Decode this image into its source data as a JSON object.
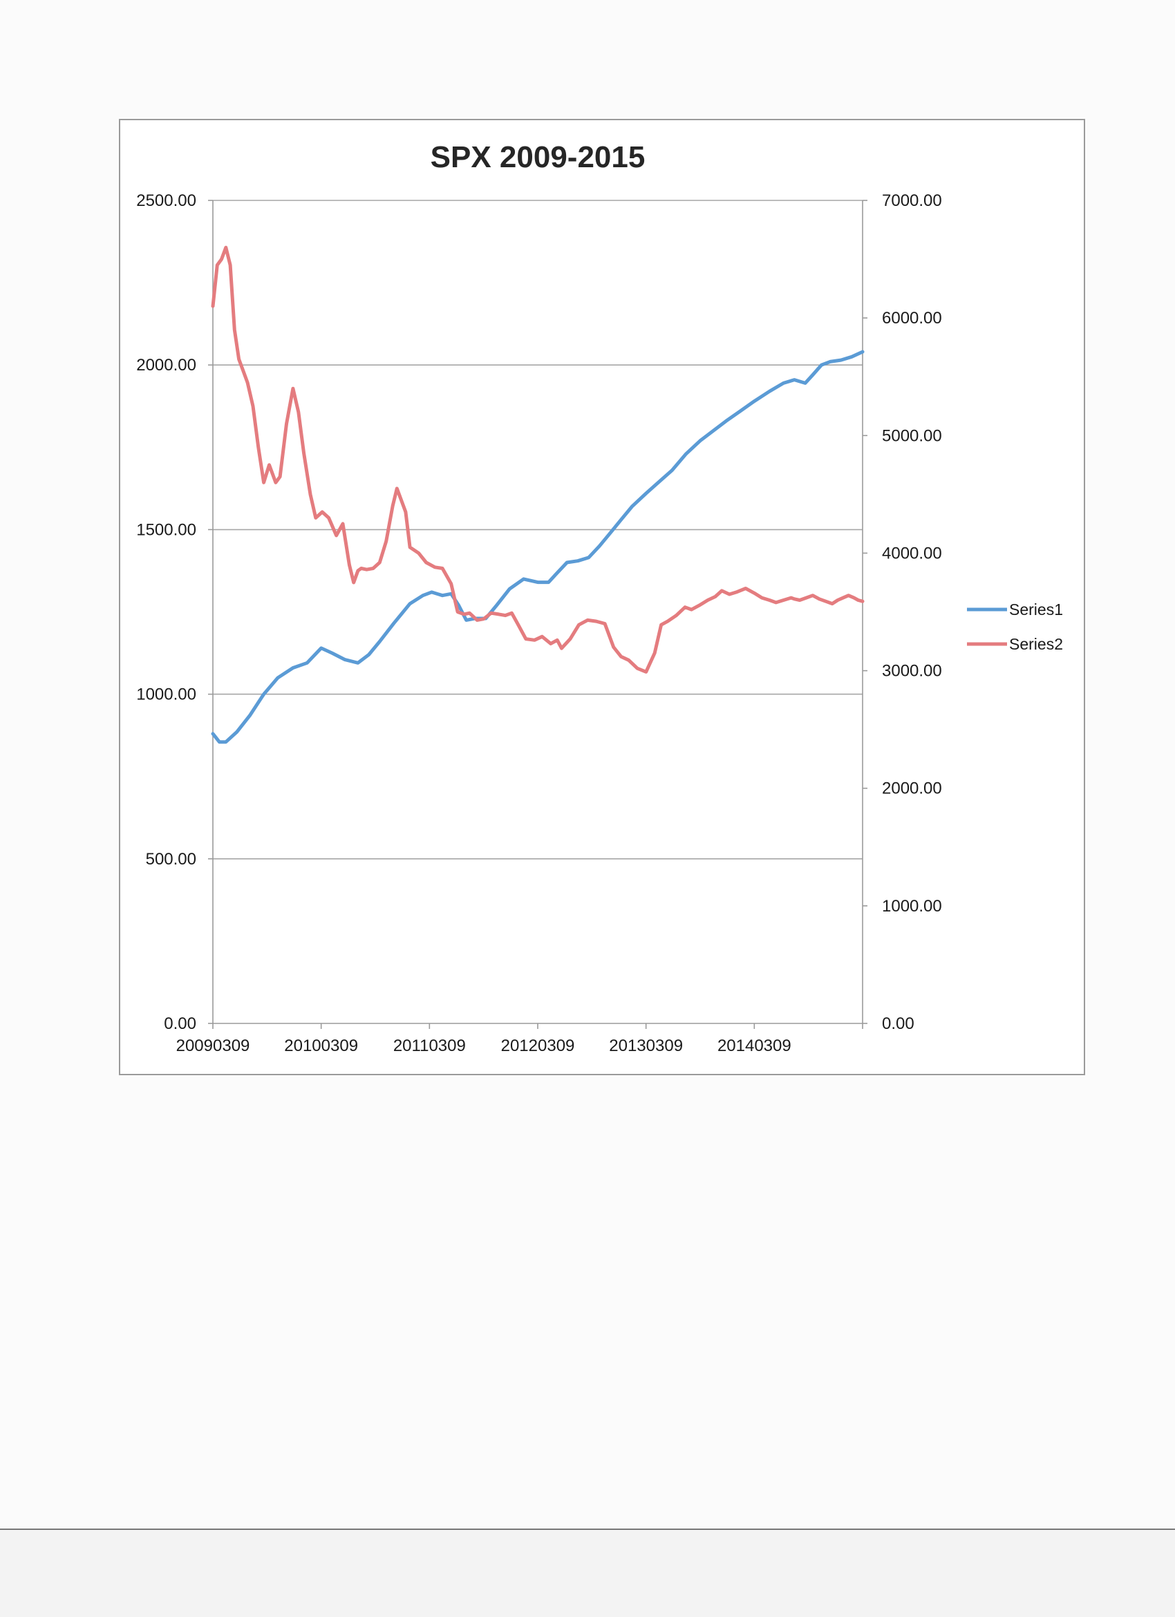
{
  "chart_data": {
    "type": "line",
    "title": "SPX 2009-2015",
    "xlabel": "",
    "ylabel": "",
    "x_tick_labels": [
      "20090309",
      "20100309",
      "20110309",
      "20120309",
      "20130309",
      "20140309"
    ],
    "x_range": [
      2009.18,
      2015.18
    ],
    "y_left": {
      "range": [
        0,
        2500
      ],
      "ticks": [
        "0.00",
        "500.00",
        "1000.00",
        "1500.00",
        "2000.00",
        "2500.00"
      ]
    },
    "y_right": {
      "range": [
        0,
        7000
      ],
      "ticks": [
        "0.00",
        "1000.00",
        "2000.00",
        "3000.00",
        "4000.00",
        "5000.00",
        "6000.00",
        "7000.00"
      ]
    },
    "gridlines": "horizontal",
    "legend_position": "right",
    "series": [
      {
        "name": "Series1",
        "axis": "left",
        "color": "#5b9bd5",
        "x": [
          2009.18,
          2009.24,
          2009.3,
          2009.4,
          2009.52,
          2009.65,
          2009.78,
          2009.92,
          2010.05,
          2010.18,
          2010.28,
          2010.4,
          2010.52,
          2010.62,
          2010.72,
          2010.85,
          2011.0,
          2011.12,
          2011.2,
          2011.3,
          2011.38,
          2011.45,
          2011.52,
          2011.6,
          2011.7,
          2011.8,
          2011.92,
          2012.05,
          2012.18,
          2012.28,
          2012.35,
          2012.45,
          2012.55,
          2012.65,
          2012.75,
          2012.85,
          2012.95,
          2013.05,
          2013.18,
          2013.3,
          2013.42,
          2013.55,
          2013.68,
          2013.8,
          2013.92,
          2014.05,
          2014.18,
          2014.32,
          2014.45,
          2014.55,
          2014.65,
          2014.72,
          2014.8,
          2014.88,
          2014.98,
          2015.08,
          2015.18
        ],
        "values": [
          880,
          855,
          855,
          885,
          935,
          1000,
          1050,
          1080,
          1095,
          1140,
          1125,
          1105,
          1095,
          1120,
          1160,
          1215,
          1275,
          1300,
          1310,
          1300,
          1305,
          1270,
          1225,
          1230,
          1230,
          1270,
          1320,
          1350,
          1340,
          1340,
          1365,
          1400,
          1405,
          1415,
          1450,
          1490,
          1530,
          1570,
          1610,
          1645,
          1680,
          1730,
          1770,
          1800,
          1830,
          1860,
          1890,
          1920,
          1945,
          1955,
          1945,
          1970,
          2000,
          2010,
          2015,
          2025,
          2040
        ]
      },
      {
        "name": "Series2",
        "axis": "right",
        "color": "#e47c7f",
        "x": [
          2009.18,
          2009.22,
          2009.26,
          2009.3,
          2009.34,
          2009.38,
          2009.42,
          2009.46,
          2009.5,
          2009.55,
          2009.6,
          2009.65,
          2009.7,
          2009.76,
          2009.8,
          2009.86,
          2009.92,
          2009.97,
          2010.02,
          2010.08,
          2010.13,
          2010.19,
          2010.25,
          2010.32,
          2010.38,
          2010.44,
          2010.48,
          2010.52,
          2010.55,
          2010.6,
          2010.66,
          2010.72,
          2010.78,
          2010.84,
          2010.88,
          2010.92,
          2010.96,
          2011.0,
          2011.08,
          2011.15,
          2011.23,
          2011.3,
          2011.38,
          2011.44,
          2011.5,
          2011.55,
          2011.62,
          2011.68,
          2011.75,
          2011.82,
          2011.88,
          2011.94,
          2012.0,
          2012.07,
          2012.15,
          2012.22,
          2012.3,
          2012.36,
          2012.4,
          2012.48,
          2012.56,
          2012.64,
          2012.72,
          2012.8,
          2012.88,
          2012.95,
          2013.02,
          2013.1,
          2013.18,
          2013.26,
          2013.32,
          2013.38,
          2013.46,
          2013.54,
          2013.6,
          2013.68,
          2013.75,
          2013.82,
          2013.88,
          2013.95,
          2014.02,
          2014.1,
          2014.18,
          2014.25,
          2014.32,
          2014.38,
          2014.45,
          2014.52,
          2014.55,
          2014.6,
          2014.66,
          2014.72,
          2014.78,
          2014.84,
          2014.9,
          2014.95,
          2015.0,
          2015.05,
          2015.1,
          2015.14,
          2015.18
        ],
        "values": [
          6100,
          6450,
          6500,
          6600,
          6450,
          5900,
          5650,
          5550,
          5450,
          5250,
          4900,
          4600,
          4750,
          4600,
          4650,
          5100,
          5400,
          5200,
          4850,
          4500,
          4300,
          4350,
          4300,
          4150,
          4250,
          3900,
          3750,
          3850,
          3870,
          3860,
          3870,
          3920,
          4100,
          4400,
          4550,
          4450,
          4350,
          4050,
          4000,
          3920,
          3880,
          3870,
          3740,
          3500,
          3480,
          3490,
          3430,
          3440,
          3490,
          3480,
          3470,
          3490,
          3390,
          3270,
          3260,
          3290,
          3230,
          3260,
          3190,
          3270,
          3390,
          3430,
          3420,
          3400,
          3200,
          3120,
          3090,
          3020,
          2990,
          3150,
          3390,
          3420,
          3470,
          3540,
          3520,
          3560,
          3600,
          3630,
          3680,
          3650,
          3670,
          3700,
          3660,
          3620,
          3600,
          3580,
          3600,
          3620,
          3610,
          3600,
          3620,
          3640,
          3610,
          3590,
          3570,
          3600,
          3620,
          3640,
          3620,
          3600,
          3590
        ]
      }
    ]
  }
}
